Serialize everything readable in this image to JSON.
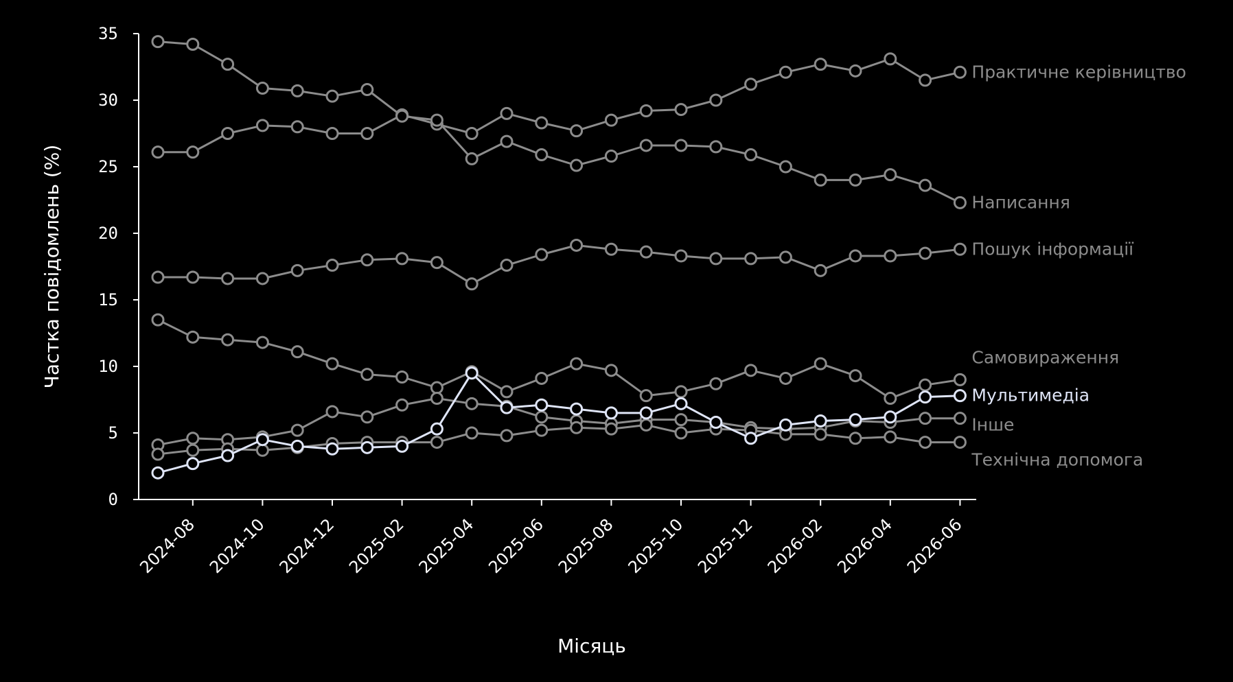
{
  "chart_data": {
    "type": "line",
    "xlabel": "Місяць",
    "ylabel": "Частка повідомлень (%)",
    "ylim": [
      0,
      35
    ],
    "yticks": [
      0,
      5,
      10,
      15,
      20,
      25,
      30,
      35
    ],
    "ytick_labels": [
      "0",
      "5",
      "10",
      "15",
      "20",
      "25",
      "30",
      "35"
    ],
    "x": [
      "2024-07",
      "2024-08",
      "2024-09",
      "2024-10",
      "2024-11",
      "2024-12",
      "2025-01",
      "2025-02",
      "2025-03",
      "2025-04",
      "2025-05",
      "2025-06",
      "2025-07",
      "2025-08",
      "2025-09",
      "2025-10",
      "2025-11",
      "2025-12",
      "2026-01",
      "2026-02",
      "2026-03",
      "2026-04",
      "2026-05",
      "2026-06"
    ],
    "xticks": [
      "2024-08",
      "2024-10",
      "2024-12",
      "2025-02",
      "2025-04",
      "2025-06",
      "2025-08",
      "2025-10",
      "2025-12",
      "2026-02",
      "2026-04",
      "2026-06"
    ],
    "grid": false,
    "legend": "direct labels at right end of each line",
    "colors": {
      "background": "#000000",
      "axis": "#ffffff",
      "muted_series": "#8c8c8c",
      "highlight_series": "#dfe5f7"
    },
    "series": [
      {
        "name": "Практичне керівництво",
        "highlight": false,
        "values": [
          26.1,
          26.1,
          27.5,
          28.1,
          28.0,
          27.5,
          27.5,
          28.9,
          28.2,
          27.5,
          29.0,
          28.3,
          27.7,
          28.5,
          29.2,
          29.3,
          30.0,
          31.2,
          32.1,
          32.7,
          32.2,
          33.1,
          31.5,
          32.1
        ]
      },
      {
        "name": "Написання",
        "highlight": false,
        "values": [
          34.4,
          34.2,
          32.7,
          30.9,
          30.7,
          30.3,
          30.8,
          28.8,
          28.5,
          25.6,
          26.9,
          25.9,
          25.1,
          25.8,
          26.6,
          26.6,
          26.5,
          25.9,
          25.0,
          24.0,
          24.0,
          24.4,
          23.6,
          22.3
        ]
      },
      {
        "name": "Пошук інформації",
        "highlight": false,
        "values": [
          16.7,
          16.7,
          16.6,
          16.6,
          17.2,
          17.6,
          18.0,
          18.1,
          17.8,
          16.2,
          17.6,
          18.4,
          19.1,
          18.8,
          18.6,
          18.3,
          18.1,
          18.1,
          18.2,
          17.2,
          18.3,
          18.3,
          18.5,
          18.8
        ]
      },
      {
        "name": "Самовираження",
        "highlight": false,
        "values": [
          13.5,
          12.2,
          12.0,
          11.8,
          11.1,
          10.2,
          9.4,
          9.2,
          8.4,
          9.6,
          8.1,
          9.1,
          10.2,
          9.7,
          7.8,
          8.1,
          8.7,
          9.7,
          9.1,
          10.2,
          9.3,
          7.6,
          8.6,
          9.0
        ]
      },
      {
        "name": "Інше",
        "highlight": false,
        "values": [
          4.1,
          4.6,
          4.5,
          4.7,
          5.2,
          6.6,
          6.2,
          7.1,
          7.6,
          7.2,
          7.0,
          6.2,
          5.9,
          5.7,
          6.0,
          6.0,
          5.8,
          5.4,
          5.3,
          5.4,
          5.9,
          5.8,
          6.1,
          6.1
        ]
      },
      {
        "name": "Технічна допомога",
        "highlight": false,
        "values": [
          3.4,
          3.7,
          3.8,
          3.7,
          3.9,
          4.2,
          4.3,
          4.3,
          4.3,
          5.0,
          4.8,
          5.2,
          5.4,
          5.3,
          5.6,
          5.0,
          5.3,
          5.2,
          4.9,
          4.9,
          4.6,
          4.7,
          4.3,
          4.3
        ]
      },
      {
        "name": "Мультимедіа",
        "highlight": true,
        "values": [
          2.0,
          2.7,
          3.3,
          4.5,
          4.0,
          3.8,
          3.9,
          4.0,
          5.3,
          9.5,
          6.9,
          7.1,
          6.8,
          6.5,
          6.5,
          7.2,
          5.8,
          4.6,
          5.6,
          5.9,
          6.0,
          6.2,
          7.7,
          7.8
        ]
      }
    ]
  }
}
